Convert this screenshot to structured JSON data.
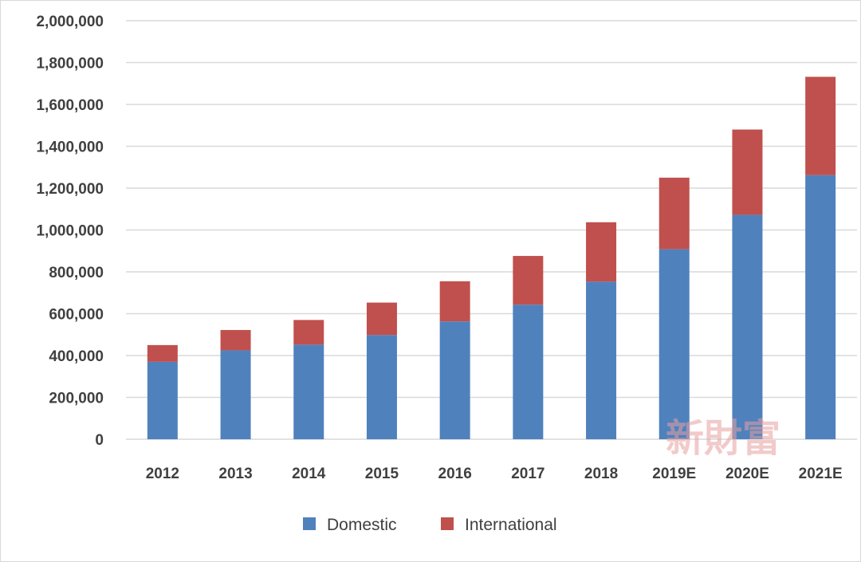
{
  "colors": {
    "domestic": "#4f81bd",
    "international": "#c0504d",
    "grid": "#d9d9d9",
    "text": "#404040"
  },
  "watermark": "新財富",
  "chart_data": {
    "type": "bar",
    "stacked": true,
    "categories": [
      "2012",
      "2013",
      "2014",
      "2015",
      "2016",
      "2017",
      "2018",
      "2019E",
      "2020E",
      "2021E"
    ],
    "series": [
      {
        "name": "Domestic",
        "values": [
          370000,
          425000,
          452000,
          498000,
          563000,
          643000,
          753000,
          908000,
          1072000,
          1262000
        ]
      },
      {
        "name": "International",
        "values": [
          80000,
          97000,
          118000,
          155000,
          192000,
          233000,
          284000,
          342000,
          408000,
          470000
        ]
      }
    ],
    "y_ticks": [
      "0",
      "200,000",
      "400,000",
      "600,000",
      "800,000",
      "1,000,000",
      "1,200,000",
      "1,400,000",
      "1,600,000",
      "1,800,000",
      "2,000,000"
    ],
    "ylim": [
      0,
      2000000
    ],
    "grid": true,
    "legend_position": "bottom",
    "title": "",
    "xlabel": "",
    "ylabel": ""
  }
}
